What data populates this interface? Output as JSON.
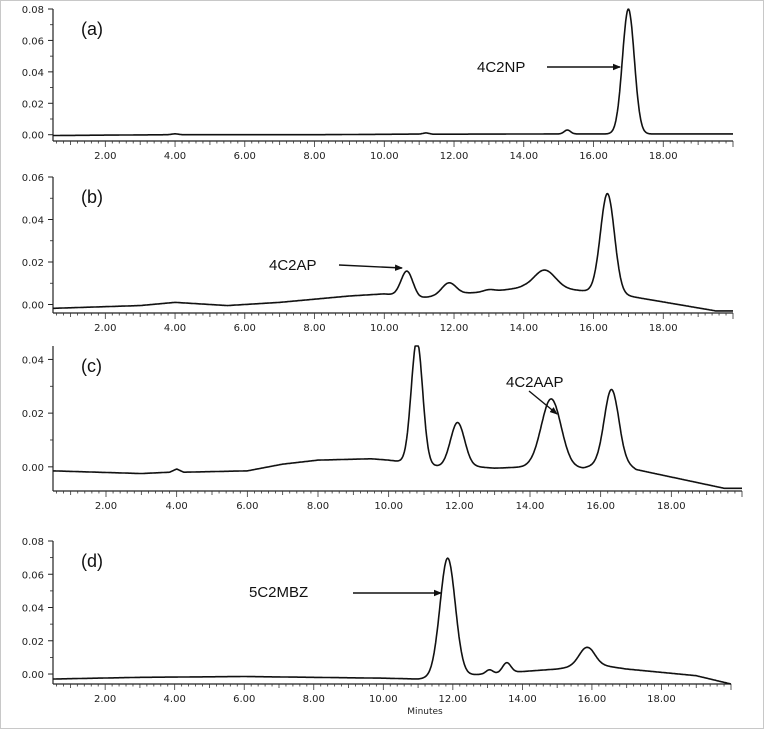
{
  "chart_data": [
    {
      "type": "line",
      "panel_label": "(a)",
      "xlim": [
        0.5,
        20
      ],
      "ylim": [
        -0.004,
        0.08
      ],
      "yticks": [
        "0.00",
        "0.02",
        "0.04",
        "0.06",
        "0.08"
      ],
      "ytick_values": [
        0,
        0.02,
        0.04,
        0.06,
        0.08
      ],
      "xticks": [
        "2.00",
        "4.00",
        "6.00",
        "8.00",
        "10.00",
        "12.00",
        "14.00",
        "16.00",
        "18.00"
      ],
      "xtick_values": [
        2,
        4,
        6,
        8,
        10,
        12,
        14,
        16,
        18
      ],
      "xlabel": "",
      "annotations": [
        {
          "text": "4C2NP",
          "x": 17.0,
          "y": 0.055
        }
      ],
      "baseline": [
        [
          0.5,
          -0.0005
        ],
        [
          3.8,
          0.0
        ],
        [
          4.0,
          0.0006
        ],
        [
          4.2,
          0.0
        ],
        [
          8.0,
          0.0
        ],
        [
          11.0,
          0.0004
        ],
        [
          11.2,
          0.0012
        ],
        [
          11.4,
          0.0003
        ],
        [
          14.8,
          0.0005
        ],
        [
          20,
          0.0005
        ]
      ],
      "peaks": [
        {
          "x": 15.25,
          "h": 0.0025,
          "w": 0.09
        },
        {
          "x": 17.0,
          "h": 0.0795,
          "w": 0.17
        }
      ]
    },
    {
      "type": "line",
      "panel_label": "(b)",
      "xlim": [
        0.5,
        20
      ],
      "ylim": [
        -0.004,
        0.06
      ],
      "yticks": [
        "0.00",
        "0.02",
        "0.04",
        "0.06"
      ],
      "ytick_values": [
        0,
        0.02,
        0.04,
        0.06
      ],
      "xticks": [
        "2.00",
        "4.00",
        "6.00",
        "8.00",
        "10.00",
        "12.00",
        "14.00",
        "16.00",
        "18.00"
      ],
      "xtick_values": [
        2,
        4,
        6,
        8,
        10,
        12,
        14,
        16,
        18
      ],
      "xlabel": "",
      "annotations": [
        {
          "text": "4C2AP",
          "x": 10.6,
          "y": 0.024
        }
      ],
      "baseline": [
        [
          0.5,
          -0.0018
        ],
        [
          3.0,
          -0.0005
        ],
        [
          4.0,
          0.001
        ],
        [
          5.5,
          -0.0005
        ],
        [
          7.0,
          0.001
        ],
        [
          9.0,
          0.004
        ],
        [
          10.0,
          0.005
        ],
        [
          11.0,
          0.003
        ],
        [
          12.0,
          0.005
        ],
        [
          13.0,
          0.006
        ],
        [
          14.0,
          0.008
        ],
        [
          15.0,
          0.0075
        ],
        [
          16.0,
          0.006
        ],
        [
          17.0,
          0.004
        ],
        [
          19.5,
          -0.003
        ],
        [
          20,
          -0.003
        ]
      ],
      "peaks": [
        {
          "x": 10.65,
          "h": 0.012,
          "w": 0.17
        },
        {
          "x": 11.85,
          "h": 0.0055,
          "w": 0.2
        },
        {
          "x": 13.0,
          "h": 0.001,
          "w": 0.15
        },
        {
          "x": 14.6,
          "h": 0.0085,
          "w": 0.3
        },
        {
          "x": 16.4,
          "h": 0.047,
          "w": 0.2
        }
      ]
    },
    {
      "type": "line",
      "panel_label": "(c)",
      "xlim": [
        0.5,
        20
      ],
      "ylim": [
        -0.009,
        0.045
      ],
      "yticks": [
        "0.00",
        "0.02",
        "0.04"
      ],
      "ytick_values": [
        0,
        0.02,
        0.04
      ],
      "xticks": [
        "2.00",
        "4.00",
        "6.00",
        "8.00",
        "10.00",
        "12.00",
        "14.00",
        "16.00",
        "18.00"
      ],
      "xtick_values": [
        2,
        4,
        6,
        8,
        10,
        12,
        14,
        16,
        18
      ],
      "xlabel": "",
      "annotations": [
        {
          "text": "4C2AAP",
          "x": 14.6,
          "y": 0.024
        }
      ],
      "baseline": [
        [
          0.5,
          -0.0015
        ],
        [
          3.0,
          -0.0025
        ],
        [
          3.8,
          -0.002
        ],
        [
          4.0,
          -0.0008
        ],
        [
          4.2,
          -0.002
        ],
        [
          6.0,
          -0.0015
        ],
        [
          7.0,
          0.001
        ],
        [
          8.0,
          0.0025
        ],
        [
          9.5,
          0.003
        ],
        [
          10.0,
          0.0025
        ],
        [
          11.5,
          0.0
        ],
        [
          12.5,
          0.0
        ],
        [
          13.0,
          -0.0005
        ],
        [
          14.0,
          0.0
        ],
        [
          15.5,
          -0.0005
        ],
        [
          16.5,
          0.003
        ],
        [
          17.0,
          -0.001
        ],
        [
          19.5,
          -0.008
        ],
        [
          20,
          -0.008
        ]
      ],
      "peaks": [
        {
          "x": 10.8,
          "h": 0.046,
          "w": 0.16
        },
        {
          "x": 11.95,
          "h": 0.0165,
          "w": 0.2
        },
        {
          "x": 14.6,
          "h": 0.0255,
          "w": 0.28
        },
        {
          "x": 16.3,
          "h": 0.0265,
          "w": 0.2
        }
      ]
    },
    {
      "type": "line",
      "panel_label": "(d)",
      "xlim": [
        0.5,
        20
      ],
      "ylim": [
        -0.006,
        0.08
      ],
      "yticks": [
        "0.00",
        "0.02",
        "0.04",
        "0.06",
        "0.08"
      ],
      "ytick_values": [
        0,
        0.02,
        0.04,
        0.06,
        0.08
      ],
      "xticks": [
        "2.00",
        "4.00",
        "6.00",
        "8.00",
        "10.00",
        "12.00",
        "14.00",
        "16.00",
        "18.00"
      ],
      "xtick_values": [
        2,
        4,
        6,
        8,
        10,
        12,
        14,
        16,
        18
      ],
      "xlabel": "Minutes",
      "annotations": [
        {
          "text": "5C2MBZ",
          "x": 11.9,
          "y": 0.064
        }
      ],
      "baseline": [
        [
          0.5,
          -0.003
        ],
        [
          3.0,
          -0.002
        ],
        [
          6.0,
          -0.0015
        ],
        [
          10.0,
          -0.0025
        ],
        [
          11.0,
          -0.003
        ],
        [
          12.0,
          -0.001
        ],
        [
          13.0,
          0.0
        ],
        [
          15.0,
          0.003
        ],
        [
          16.0,
          0.006
        ],
        [
          17.0,
          0.003
        ],
        [
          18.0,
          0.001
        ],
        [
          19.0,
          -0.001
        ],
        [
          20,
          -0.006
        ]
      ],
      "peaks": [
        {
          "x": 11.85,
          "h": 0.071,
          "w": 0.22
        },
        {
          "x": 13.05,
          "h": 0.0025,
          "w": 0.1
        },
        {
          "x": 13.55,
          "h": 0.006,
          "w": 0.12
        },
        {
          "x": 15.85,
          "h": 0.0105,
          "w": 0.22
        }
      ]
    }
  ]
}
